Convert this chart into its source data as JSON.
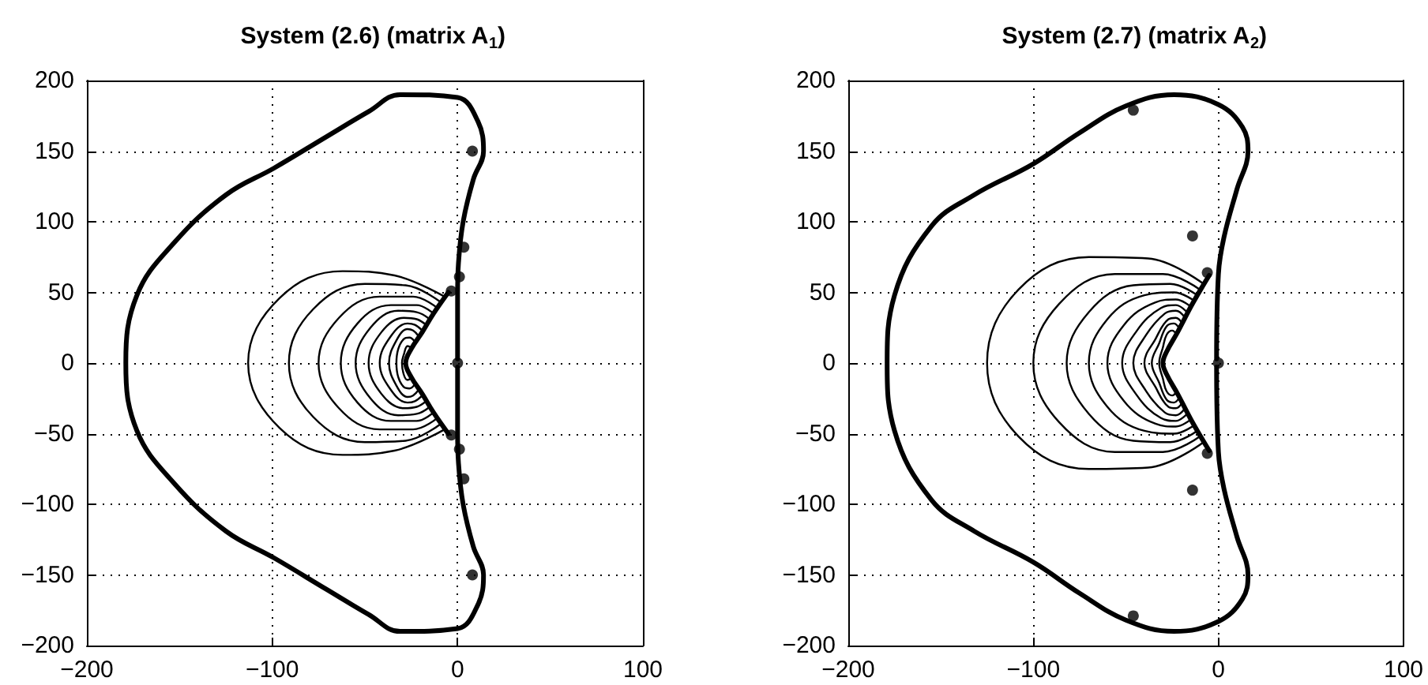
{
  "chart_data": [
    {
      "type": "line",
      "title": "System (2.6) (matrix A$_{1}$)",
      "xlim": [
        -200,
        100
      ],
      "ylim": [
        -200,
        200
      ],
      "xticks": [
        -200,
        -100,
        0,
        100
      ],
      "yticks": [
        -200,
        -150,
        -100,
        -50,
        0,
        50,
        100,
        150,
        200
      ],
      "grid": true,
      "marker": "none",
      "line_style": "solid",
      "series": [
        {
          "color": "#000000",
          "x": [
            0,
            0,
            0.5,
            3,
            8.5,
            14,
            11,
            0,
            -31,
            -48,
            -71,
            -99,
            -125,
            -153,
            -173,
            -179,
            -173,
            -153,
            -125,
            -99,
            -71,
            -48,
            -31,
            0,
            11,
            14,
            8.5,
            3,
            0.5,
            0,
            0
          ],
          "values": [
            3,
            48,
            71,
            100,
            130,
            150,
            171,
            188,
            190,
            178,
            160,
            138,
            119,
            85,
            48,
            0,
            -48,
            -85,
            -119,
            -138,
            -160,
            -178,
            -190,
            -188,
            -171,
            -150,
            -130,
            -100,
            -71,
            -48,
            -3
          ]
        },
        {
          "color": "#000000",
          "x": [
            -5,
            -13,
            -19,
            -25,
            -28,
            -25,
            -19,
            -13,
            -5
          ],
          "values": [
            50,
            35,
            22,
            10,
            0,
            -10,
            -22,
            -35,
            -50
          ]
        },
        {
          "color": "#000000",
          "x": [
            -7,
            -34,
            -62,
            -96,
            -113,
            -96,
            -62,
            -34,
            -7
          ],
          "values": [
            47,
            62,
            65,
            46,
            0,
            -46,
            -65,
            -62,
            -47
          ]
        },
        {
          "color": "#000000",
          "x": [
            -9,
            -28,
            -50,
            -78,
            -91,
            -78,
            -50,
            -28,
            -9
          ],
          "values": [
            43,
            55,
            56,
            38,
            0,
            -38,
            -56,
            -55,
            -43
          ]
        },
        {
          "color": "#000000",
          "x": [
            -11,
            -24,
            -42,
            -64,
            -75,
            -64,
            -42,
            -24,
            -11
          ],
          "values": [
            39,
            47,
            47,
            32,
            0,
            -32,
            -47,
            -47,
            -39
          ]
        },
        {
          "color": "#000000",
          "x": [
            -13,
            -22,
            -36,
            -54,
            -63,
            -54,
            -36,
            -22,
            -13
          ],
          "values": [
            35,
            41,
            41,
            28,
            0,
            -28,
            -41,
            -41,
            -35
          ]
        },
        {
          "color": "#000000",
          "x": [
            -15,
            -22,
            -32,
            -47,
            -55,
            -47,
            -32,
            -22,
            -15
          ],
          "values": [
            31,
            36,
            37,
            25,
            0,
            -25,
            -37,
            -36,
            -31
          ]
        },
        {
          "color": "#000000",
          "x": [
            -17,
            -22,
            -29,
            -41,
            -48,
            -41,
            -29,
            -22,
            -17
          ],
          "values": [
            27,
            31,
            32,
            22,
            0,
            -22,
            -32,
            -31,
            -27
          ]
        },
        {
          "color": "#000000",
          "x": [
            -19,
            -23,
            -27,
            -36,
            -42,
            -36,
            -27,
            -23,
            -19
          ],
          "values": [
            23,
            27,
            28,
            19,
            0,
            -19,
            -28,
            -27,
            -23
          ]
        },
        {
          "color": "#000000",
          "x": [
            -21,
            -24,
            -27,
            -33,
            -37,
            -33,
            -27,
            -24,
            -21
          ],
          "values": [
            19,
            23,
            24,
            16,
            0,
            -16,
            -24,
            -23,
            -19
          ]
        },
        {
          "color": "#000000",
          "x": [
            -23,
            -26,
            -29,
            -32,
            -33,
            -32,
            -29,
            -26,
            -23
          ],
          "values": [
            15,
            18,
            17,
            10,
            0,
            -10,
            -17,
            -18,
            -15
          ]
        },
        {
          "color": "#000000",
          "x": [
            -25,
            -27,
            -29,
            -30,
            -27,
            -25
          ],
          "values": [
            11,
            12,
            6,
            0,
            -12,
            -11
          ]
        },
        {
          "type": "scatter",
          "marker": "circle",
          "color": "#000000",
          "x": [
            8,
            3.4,
            1,
            -3.4,
            0,
            -3.4,
            1,
            3.4,
            8
          ],
          "values": [
            150,
            82,
            61,
            51,
            0,
            -51,
            -61,
            -82,
            -150
          ]
        }
      ]
    },
    {
      "type": "line",
      "title": "System (2.7) (matrix A$_{2}$)",
      "xlim": [
        -200,
        100
      ],
      "ylim": [
        -200,
        200
      ],
      "xticks": [
        -200,
        -100,
        0,
        100
      ],
      "yticks": [
        -200,
        -150,
        -100,
        -50,
        0,
        50,
        100,
        150,
        200
      ],
      "grid": true,
      "marker": "none",
      "line_style": "solid",
      "series": [
        {
          "color": "#000000",
          "x": [
            -1,
            0,
            3,
            10,
            16,
            13,
            0,
            -24,
            -50,
            -75,
            -100,
            -132,
            -155,
            -175,
            -179,
            -175,
            -155,
            -132,
            -100,
            -75,
            -50,
            -24,
            0,
            13,
            16,
            10,
            3,
            0,
            -1
          ],
          "values": [
            3,
            63,
            89,
            123,
            150,
            167,
            183,
            190,
            182,
            163,
            141,
            119,
            97,
            48,
            0,
            -48,
            -97,
            -119,
            -141,
            -163,
            -182,
            -190,
            -183,
            -167,
            -150,
            -123,
            -89,
            -63,
            -3
          ]
        },
        {
          "color": "#000000",
          "x": [
            -5,
            -14,
            -22,
            -28,
            -30,
            -28,
            -22,
            -14,
            -5
          ],
          "values": [
            62,
            42,
            22,
            8,
            0,
            -8,
            -22,
            -42,
            -62
          ]
        },
        {
          "color": "#000000",
          "x": [
            -8,
            -38,
            -70,
            -108,
            -125,
            -108,
            -70,
            -38,
            -8
          ],
          "values": [
            56,
            74,
            75,
            52,
            0,
            -52,
            -75,
            -74,
            -56
          ]
        },
        {
          "color": "#000000",
          "x": [
            -10,
            -30,
            -56,
            -86,
            -100,
            -86,
            -56,
            -30,
            -10
          ],
          "values": [
            52,
            63,
            63,
            42,
            0,
            -42,
            -63,
            -63,
            -52
          ]
        },
        {
          "color": "#000000",
          "x": [
            -11.5,
            -26,
            -46,
            -70,
            -82,
            -70,
            -46,
            -26,
            -11.5
          ],
          "values": [
            48,
            56,
            55,
            36,
            0,
            -36,
            -55,
            -56,
            -48
          ]
        },
        {
          "color": "#000000",
          "x": [
            -13,
            -24,
            -40,
            -60,
            -70,
            -60,
            -40,
            -24,
            -13
          ],
          "values": [
            44,
            50,
            48,
            31,
            0,
            -31,
            -48,
            -50,
            -44
          ]
        },
        {
          "color": "#000000",
          "x": [
            -15,
            -23,
            -34,
            -51,
            -60,
            -51,
            -34,
            -23,
            -15
          ],
          "values": [
            40,
            45,
            43,
            27,
            0,
            -27,
            -43,
            -45,
            -40
          ]
        },
        {
          "color": "#000000",
          "x": [
            -17,
            -23,
            -31,
            -44,
            -52,
            -44,
            -31,
            -23,
            -17
          ],
          "values": [
            36,
            41,
            39,
            23,
            0,
            -23,
            -39,
            -41,
            -36
          ]
        },
        {
          "color": "#000000",
          "x": [
            -18,
            -23,
            -29,
            -39,
            -46,
            -39,
            -29,
            -23,
            -18
          ],
          "values": [
            32,
            37,
            35,
            20,
            0,
            -20,
            -35,
            -37,
            -32
          ]
        },
        {
          "color": "#000000",
          "x": [
            -19.5,
            -23,
            -27,
            -34,
            -40,
            -34,
            -27,
            -23,
            -19.5
          ],
          "values": [
            28,
            32,
            31,
            17,
            0,
            -17,
            -31,
            -32,
            -28
          ]
        },
        {
          "color": "#000000",
          "x": [
            -21,
            -24,
            -28,
            -32,
            -36,
            -32,
            -28,
            -24,
            -21
          ],
          "values": [
            24,
            28,
            26,
            14,
            0,
            -14,
            -26,
            -28,
            -24
          ]
        },
        {
          "color": "#000000",
          "x": [
            -22.5,
            -25,
            -28,
            -30,
            -32,
            -30,
            -28,
            -25,
            -22.5
          ],
          "values": [
            20,
            23,
            20,
            11,
            0,
            -11,
            -20,
            -23,
            -20
          ]
        },
        {
          "type": "scatter",
          "marker": "circle",
          "color": "#000000",
          "x": [
            -46,
            -14,
            -6,
            0,
            -6,
            -14,
            -46
          ],
          "values": [
            179,
            90,
            64,
            0,
            -64,
            -90,
            -179
          ]
        }
      ]
    }
  ]
}
